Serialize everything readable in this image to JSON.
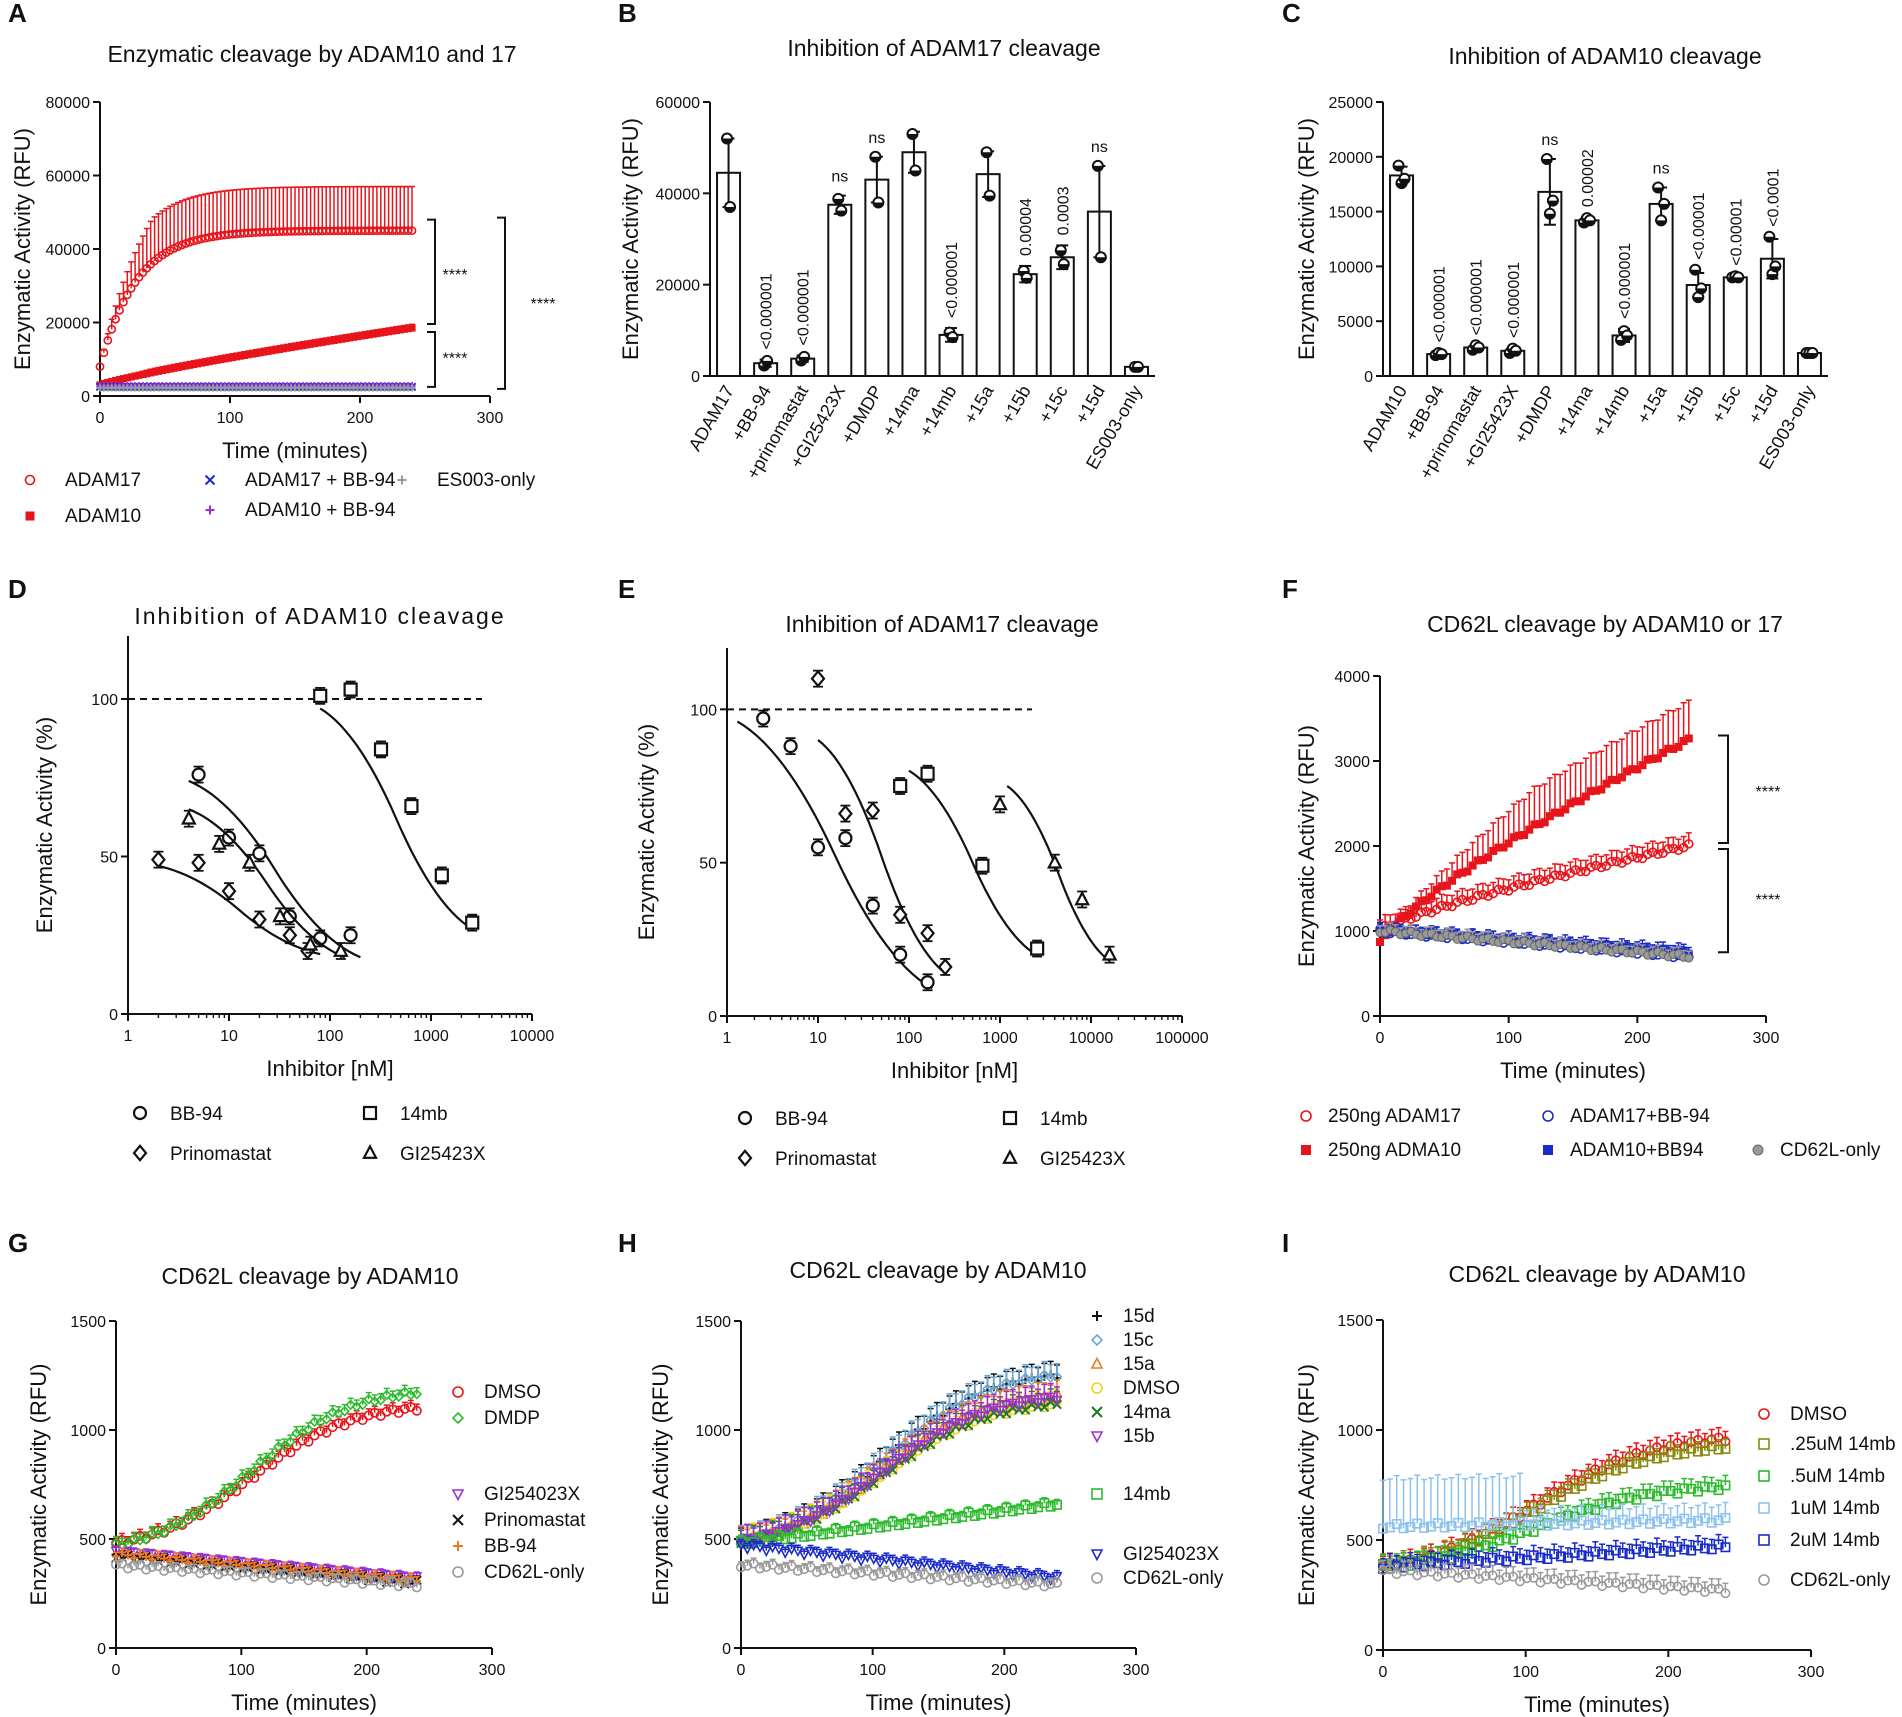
{
  "figure": {
    "panels": [
      "A",
      "B",
      "C",
      "D",
      "E",
      "F",
      "G",
      "H",
      "I"
    ],
    "colors": {
      "red": "#e8141b",
      "blue": "#1a2bc8",
      "purple": "#9b30d9",
      "grey": "#9a9a9a",
      "green": "#2dbb2d",
      "black": "#111111",
      "orange": "#f07820",
      "teal": "#6aa8d8",
      "gold": "#f0b020",
      "olive": "#8a8a10",
      "lightblue": "#8ec2ee"
    }
  },
  "chart_data": [
    {
      "id": "A",
      "type": "line",
      "title": "Enzymatic cleavage by ADAM10 and 17",
      "xlabel": "Time (minutes)",
      "ylabel": "Enzymatic Activity (RFU)",
      "xlim": [
        0,
        300
      ],
      "ylim": [
        0,
        80000
      ],
      "xticks": [
        0,
        100,
        200,
        300
      ],
      "yticks": [
        0,
        20000,
        40000,
        60000,
        80000
      ],
      "series": [
        {
          "name": "ADAM17",
          "color": "#e8141b",
          "marker": "circle-open",
          "plateau": 45000,
          "start": 8000,
          "err": 12000
        },
        {
          "name": "ADAM10",
          "color": "#e8141b",
          "marker": "square-filled",
          "plateau": 18500,
          "start": 3000,
          "err": 1000
        },
        {
          "name": "ADAM17 + BB-94",
          "color": "#1a2bc8",
          "marker": "x",
          "value": 2500
        },
        {
          "name": "ADAM10 + BB-94",
          "color": "#9b30d9",
          "marker": "plus",
          "value": 2800
        },
        {
          "name": "ES003-only",
          "color": "#9a9a9a",
          "marker": "plus",
          "value": 2200
        }
      ],
      "annotations": [
        "****",
        "****",
        "****"
      ]
    },
    {
      "id": "B",
      "type": "bar",
      "title": "Inhibition of ADAM17 cleavage",
      "ylabel": "Enzymatic Activity (RFU)",
      "ylim": [
        0,
        60000
      ],
      "yticks": [
        0,
        20000,
        40000,
        60000
      ],
      "categories": [
        "ADAM17",
        "+BB-94",
        "+prinomastat",
        "+GI25423X",
        "+DMDP",
        "+14ma",
        "+14mb",
        "+15a",
        "+15b",
        "+15c",
        "+15d",
        "ES003-only"
      ],
      "values": [
        44500,
        2800,
        3800,
        37500,
        43000,
        49000,
        9000,
        44200,
        22300,
        26000,
        36000,
        2000
      ],
      "errors": [
        7500,
        800,
        700,
        2000,
        5000,
        4500,
        1500,
        5000,
        1800,
        2600,
        10000,
        400
      ],
      "points": [
        [
          52000,
          37000
        ],
        [
          2300,
          3300
        ],
        [
          3400,
          4200
        ],
        [
          38800,
          36200
        ],
        [
          48000,
          38000
        ],
        [
          53000,
          45000
        ],
        [
          9500,
          8500
        ],
        [
          49000,
          39500
        ],
        [
          23000,
          21500
        ],
        [
          27500,
          24500
        ],
        [
          46000,
          26000
        ],
        [
          2000,
          2000
        ]
      ],
      "labels": [
        "",
        "<0.000001",
        "<0.000001",
        "ns",
        "ns",
        "",
        "<0.000001",
        "",
        "0.00004",
        "0.0003",
        "ns",
        ""
      ]
    },
    {
      "id": "C",
      "type": "bar",
      "title": "Inhibition of ADAM10 cleavage",
      "ylabel": "Enzymatic Activity (RFU)",
      "ylim": [
        0,
        25000
      ],
      "yticks": [
        0,
        5000,
        10000,
        15000,
        20000,
        25000
      ],
      "categories": [
        "ADAM10",
        "+BB-94",
        "+prinomastat",
        "+GI25423X",
        "+DMDP",
        "+14ma",
        "+14mb",
        "+15a",
        "+15b",
        "+15c",
        "+15d",
        "ES003-only"
      ],
      "values": [
        18300,
        2000,
        2600,
        2300,
        16800,
        14200,
        3700,
        15700,
        8300,
        9000,
        10700,
        2100
      ],
      "errors": [
        800,
        150,
        200,
        250,
        3000,
        300,
        600,
        1500,
        1100,
        150,
        1800,
        100
      ],
      "points": [
        [
          19200,
          17600,
          18000
        ],
        [
          1900,
          2100,
          2000
        ],
        [
          2400,
          2800,
          2600
        ],
        [
          2100,
          2500,
          2300
        ],
        [
          19800,
          14800,
          16000
        ],
        [
          14000,
          14400,
          14200
        ],
        [
          3300,
          4100,
          3700
        ],
        [
          17200,
          14200,
          15700
        ],
        [
          9700,
          7200,
          8000
        ],
        [
          9000,
          9100,
          9000
        ],
        [
          12700,
          9300,
          10000
        ],
        [
          2100,
          2100,
          2100
        ]
      ],
      "labels": [
        "",
        "<0.000001",
        "<0.000001",
        "<0.000001",
        "ns",
        "0.00002",
        "<0.000001",
        "ns",
        "<0.00001",
        "<0.00001",
        "<0.0001",
        ""
      ]
    },
    {
      "id": "D",
      "type": "scatter",
      "title": "Inhibition of ADAM10 cleavage",
      "xlabel": "Inhibitor [nM]",
      "ylabel": "Enzymatic Activity (%)",
      "xscale": "log",
      "xlim": [
        1,
        10000
      ],
      "ylim": [
        0,
        120
      ],
      "xticks": [
        1,
        10,
        100,
        1000,
        10000
      ],
      "yticks": [
        0,
        50,
        100
      ],
      "reference_line": 100,
      "series": [
        {
          "name": "BB-94",
          "marker": "circle",
          "x": [
            5,
            10,
            20,
            40,
            80,
            160
          ],
          "y": [
            76,
            56,
            51,
            31,
            24,
            25
          ],
          "fit": [
            [
              4,
              74
            ],
            [
              200,
              18
            ]
          ]
        },
        {
          "name": "14mb",
          "marker": "square",
          "x": [
            80,
            160,
            320,
            640,
            1280,
            2560
          ],
          "y": [
            101,
            103,
            84,
            66,
            44,
            29
          ],
          "fit": [
            [
              80,
              97
            ],
            [
              2560,
              27
            ]
          ]
        },
        {
          "name": "Prinomastat",
          "marker": "diamond",
          "x": [
            2,
            5,
            10,
            20,
            40,
            60
          ],
          "y": [
            49,
            48,
            39,
            30,
            25,
            20
          ],
          "fit": [
            [
              2,
              47
            ],
            [
              80,
              19
            ]
          ]
        },
        {
          "name": "GI25423X",
          "marker": "triangle",
          "x": [
            4,
            8,
            16,
            32,
            64,
            128
          ],
          "y": [
            62,
            54,
            48,
            31,
            22,
            20
          ],
          "fit": [
            [
              4,
              65
            ],
            [
              140,
              18
            ]
          ]
        }
      ]
    },
    {
      "id": "E",
      "type": "scatter",
      "title": "Inhibition of ADAM17 cleavage",
      "xlabel": "Inhibitor [nM]",
      "ylabel": "Enzymatic Activity (%)",
      "xscale": "log",
      "xlim": [
        1,
        100000
      ],
      "ylim": [
        0,
        120
      ],
      "xticks": [
        1,
        10,
        100,
        1000,
        10000,
        100000
      ],
      "yticks": [
        0,
        50,
        100
      ],
      "reference_line": 100,
      "series": [
        {
          "name": "BB-94",
          "marker": "circle",
          "x": [
            2.5,
            5,
            10,
            20,
            40,
            80,
            160
          ],
          "y": [
            97,
            88,
            55,
            58,
            36,
            20,
            11
          ],
          "fit": [
            [
              1.3,
              96
            ],
            [
              180,
              9
            ]
          ]
        },
        {
          "name": "14mb",
          "marker": "square",
          "x": [
            80,
            160,
            640,
            2560
          ],
          "y": [
            75,
            79,
            49,
            22
          ],
          "fit": [
            [
              100,
              80
            ],
            [
              2500,
              20
            ]
          ]
        },
        {
          "name": "Prinomastat",
          "marker": "diamond",
          "x": [
            10,
            20,
            40,
            80,
            160,
            250
          ],
          "y": [
            110,
            66,
            67,
            33,
            27,
            16
          ],
          "fit": [
            [
              10,
              90
            ],
            [
              250,
              14
            ]
          ]
        },
        {
          "name": "GI25423X",
          "marker": "triangle",
          "x": [
            1000,
            4000,
            8000,
            16000
          ],
          "y": [
            69,
            50,
            38,
            20
          ],
          "fit": [
            [
              1200,
              75
            ],
            [
              16000,
              18
            ]
          ]
        }
      ]
    },
    {
      "id": "F",
      "type": "line",
      "title": "CD62L cleavage by ADAM10 or 17",
      "xlabel": "Time (minutes)",
      "ylabel": "Enzymatic Activity (RFU)",
      "xlim": [
        0,
        300
      ],
      "ylim": [
        0,
        4000
      ],
      "xticks": [
        0,
        100,
        200,
        300
      ],
      "yticks": [
        0,
        1000,
        2000,
        3000,
        4000
      ],
      "series": [
        {
          "name": "250ng ADAM17",
          "color": "#e8141b",
          "marker": "circle-open",
          "start": 1000,
          "end": 2000
        },
        {
          "name": "250ng ADMA10",
          "color": "#e8141b",
          "marker": "square-filled",
          "start": 850,
          "end": 3250
        },
        {
          "name": "ADAM17+BB-94",
          "color": "#1a2bc8",
          "marker": "circle-open",
          "start": 1000,
          "end": 700
        },
        {
          "name": "ADAM10+BB94",
          "color": "#1a2bc8",
          "marker": "square-filled",
          "start": 1000,
          "end": 750
        },
        {
          "name": "CD62L-only",
          "color": "#9a9a9a",
          "marker": "circle-filled",
          "start": 1000,
          "end": 700
        }
      ],
      "annotations": [
        "****",
        "****"
      ]
    },
    {
      "id": "G",
      "type": "line",
      "title": "CD62L cleavage by ADAM10",
      "xlabel": "Time (minutes)",
      "ylabel": "Enzymatic Activity (RFU)",
      "xlim": [
        0,
        300
      ],
      "ylim": [
        0,
        1500
      ],
      "xticks": [
        0,
        100,
        200,
        300
      ],
      "yticks": [
        0,
        500,
        1000,
        1500
      ],
      "series": [
        {
          "name": "DMSO",
          "color": "#e8141b",
          "marker": "circle-open",
          "start": 480,
          "end": 1100
        },
        {
          "name": "DMDP",
          "color": "#2dbb2d",
          "marker": "diamond-open",
          "start": 470,
          "end": 1170
        },
        {
          "name": "GI254023X",
          "color": "#9b30d9",
          "marker": "triangle-down",
          "start": 440,
          "end": 320
        },
        {
          "name": "Prinomastat",
          "color": "#111111",
          "marker": "x",
          "start": 420,
          "end": 300
        },
        {
          "name": "BB-94",
          "color": "#f07820",
          "marker": "plus",
          "start": 430,
          "end": 310
        },
        {
          "name": "CD62L-only",
          "color": "#9a9a9a",
          "marker": "circle-open",
          "start": 380,
          "end": 290
        }
      ]
    },
    {
      "id": "H",
      "type": "line",
      "title": "CD62L cleavage by ADAM10",
      "xlabel": "Time (minutes)",
      "ylabel": "Enzymatic Activity (RFU)",
      "xlim": [
        0,
        300
      ],
      "ylim": [
        0,
        1500
      ],
      "xticks": [
        0,
        100,
        200,
        300
      ],
      "yticks": [
        0,
        500,
        1000,
        1500
      ],
      "series": [
        {
          "name": "15d",
          "color": "#111111",
          "marker": "plus",
          "start": 490,
          "end": 1250
        },
        {
          "name": "15c",
          "color": "#6aa8d8",
          "marker": "diamond-open",
          "start": 490,
          "end": 1250
        },
        {
          "name": "15a",
          "color": "#f07820",
          "marker": "triangle",
          "start": 490,
          "end": 1160
        },
        {
          "name": "DMSO",
          "color": "#f0d020",
          "marker": "circle-open",
          "start": 490,
          "end": 1120
        },
        {
          "name": "14ma",
          "color": "#1f7a1f",
          "marker": "x",
          "start": 490,
          "end": 1120
        },
        {
          "name": "15b",
          "color": "#9b30d9",
          "marker": "triangle-down",
          "start": 490,
          "end": 1150
        },
        {
          "name": "14mb",
          "color": "#2dbb2d",
          "marker": "square-open",
          "start": 480,
          "end": 660
        },
        {
          "name": "GI254023X",
          "color": "#1a2bc8",
          "marker": "triangle-down",
          "start": 470,
          "end": 320
        },
        {
          "name": "CD62L-only",
          "color": "#9a9a9a",
          "marker": "circle-open",
          "start": 380,
          "end": 290
        }
      ]
    },
    {
      "id": "I",
      "type": "line",
      "title": "CD62L cleavage by ADAM10",
      "xlabel": "Time (minutes)",
      "ylabel": "Enzymatic Activity (RFU)",
      "xlim": [
        0,
        300
      ],
      "ylim": [
        0,
        1500
      ],
      "xticks": [
        0,
        100,
        200,
        300
      ],
      "yticks": [
        0,
        500,
        1000,
        1500
      ],
      "series": [
        {
          "name": "DMSO",
          "color": "#e8141b",
          "marker": "circle-open",
          "start": 380,
          "end": 960
        },
        {
          "name": ".25uM 14mb",
          "color": "#8a8a10",
          "marker": "square-open",
          "start": 380,
          "end": 920
        },
        {
          "name": ".5uM 14mb",
          "color": "#2dbb2d",
          "marker": "square-open",
          "start": 380,
          "end": 740
        },
        {
          "name": "1uM 14mb",
          "color": "#8ec2ee",
          "marker": "square-open",
          "start": 560,
          "end": 590
        },
        {
          "name": "2uM 14mb",
          "color": "#1a2bc8",
          "marker": "square-open",
          "start": 380,
          "end": 470
        },
        {
          "name": "CD62L-only",
          "color": "#9a9a9a",
          "marker": "circle-open",
          "start": 360,
          "end": 270
        }
      ]
    }
  ]
}
